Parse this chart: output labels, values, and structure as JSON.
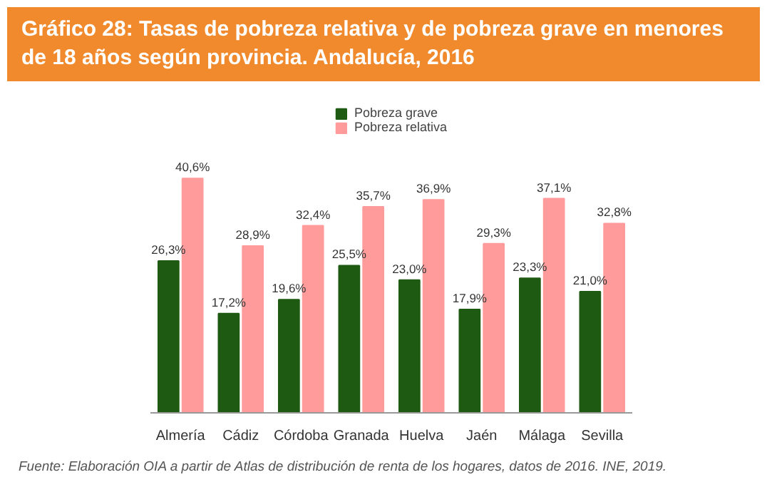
{
  "chart_data": {
    "type": "bar",
    "title": "Gráfico 28: Tasas de pobreza relativa y de pobreza grave en menores de 18 años según provincia. Andalucía, 2016",
    "categories": [
      "Almería",
      "Cádiz",
      "Córdoba",
      "Granada",
      "Huelva",
      "Jaén",
      "Málaga",
      "Sevilla"
    ],
    "series": [
      {
        "name": "Pobreza grave",
        "color": "#1e5a12",
        "values": [
          26.3,
          17.2,
          19.6,
          25.5,
          23.0,
          17.9,
          23.3,
          21.0
        ],
        "value_labels": [
          "26,3%",
          "17,2%",
          "19,6%",
          "25,5%",
          "23,0%",
          "17,9%",
          "23,3%",
          "21,0%"
        ]
      },
      {
        "name": "Pobreza relativa",
        "color": "#ff9b9b",
        "values": [
          40.6,
          28.9,
          32.4,
          35.7,
          36.9,
          29.3,
          37.1,
          32.8
        ],
        "value_labels": [
          "40,6%",
          "28,9%",
          "32,4%",
          "35,7%",
          "36,9%",
          "29,3%",
          "37,1%",
          "32,8%"
        ]
      }
    ],
    "legend": "top",
    "grid": false,
    "annotations": [
      "Fuente: Elaboración OIA a partir de Atlas de distribución de renta de los hogares, datos de 2016. INE, 2019."
    ]
  }
}
